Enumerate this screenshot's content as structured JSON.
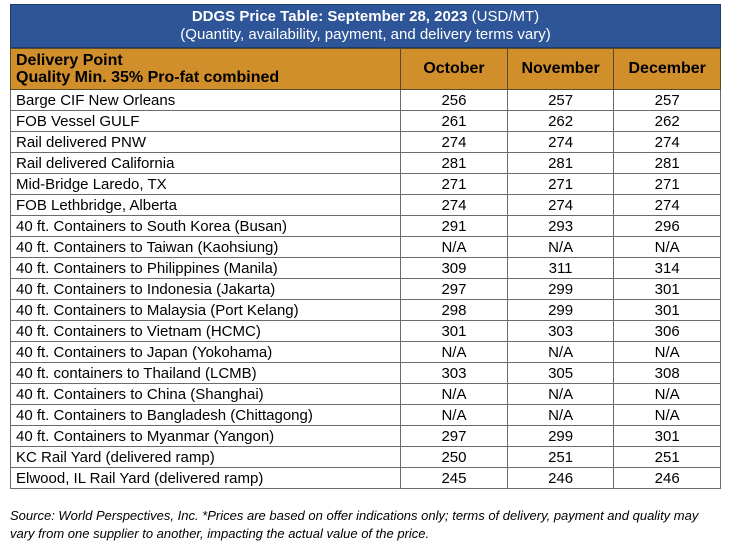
{
  "header": {
    "title_bold": "DDGS Price Table: September 28, 2023",
    "title_unit": "(USD/MT)",
    "subtitle": "(Quantity, availability, payment, and delivery terms vary)"
  },
  "columns": {
    "delivery_point": "Delivery Point",
    "quality": "Quality Min. 35% Pro-fat combined",
    "months": [
      "October",
      "November",
      "December"
    ]
  },
  "rows": [
    {
      "point": "Barge CIF New Orleans",
      "values": [
        "256",
        "257",
        "257"
      ]
    },
    {
      "point": "FOB Vessel GULF",
      "values": [
        "261",
        "262",
        "262"
      ]
    },
    {
      "point": "Rail delivered PNW",
      "values": [
        "274",
        "274",
        "274"
      ]
    },
    {
      "point": "Rail delivered California",
      "values": [
        "281",
        "281",
        "281"
      ]
    },
    {
      "point": "Mid-Bridge Laredo, TX",
      "values": [
        "271",
        "271",
        "271"
      ]
    },
    {
      "point": "FOB Lethbridge, Alberta",
      "values": [
        "274",
        "274",
        "274"
      ]
    },
    {
      "point": "40 ft. Containers to South Korea (Busan)",
      "values": [
        "291",
        "293",
        "296"
      ]
    },
    {
      "point": "40 ft. Containers to Taiwan (Kaohsiung)",
      "values": [
        "N/A",
        "N/A",
        "N/A"
      ]
    },
    {
      "point": "40 ft. Containers to Philippines (Manila)",
      "values": [
        "309",
        "311",
        "314"
      ]
    },
    {
      "point": "40 ft. Containers to Indonesia (Jakarta)",
      "values": [
        "297",
        "299",
        "301"
      ]
    },
    {
      "point": "40 ft. Containers to Malaysia (Port Kelang)",
      "values": [
        "298",
        "299",
        "301"
      ]
    },
    {
      "point": "40 ft. Containers to Vietnam (HCMC)",
      "values": [
        "301",
        "303",
        "306"
      ]
    },
    {
      "point": "40 ft. Containers to Japan (Yokohama)",
      "values": [
        "N/A",
        "N/A",
        "N/A"
      ]
    },
    {
      "point": "40 ft. containers to Thailand (LCMB)",
      "values": [
        "303",
        "305",
        "308"
      ]
    },
    {
      "point": "40 ft. Containers to China (Shanghai)",
      "values": [
        "N/A",
        "N/A",
        "N/A"
      ]
    },
    {
      "point": "40 ft. Containers to Bangladesh (Chittagong)",
      "values": [
        "N/A",
        "N/A",
        "N/A"
      ]
    },
    {
      "point": "40 ft. Containers to Myanmar (Yangon)",
      "values": [
        "297",
        "299",
        "301"
      ]
    },
    {
      "point": "KC Rail Yard (delivered ramp)",
      "values": [
        "250",
        "251",
        "251"
      ]
    },
    {
      "point": "Elwood, IL Rail Yard (delivered ramp)",
      "values": [
        "245",
        "246",
        "246"
      ]
    }
  ],
  "footer": {
    "source": "Source: World Perspectives, Inc. *Prices are based on offer indications only; terms of delivery, payment and quality may vary from one supplier to another, impacting the actual value of the price."
  },
  "colors": {
    "title_bg": "#2e5597",
    "header_bg": "#d18f2c"
  }
}
